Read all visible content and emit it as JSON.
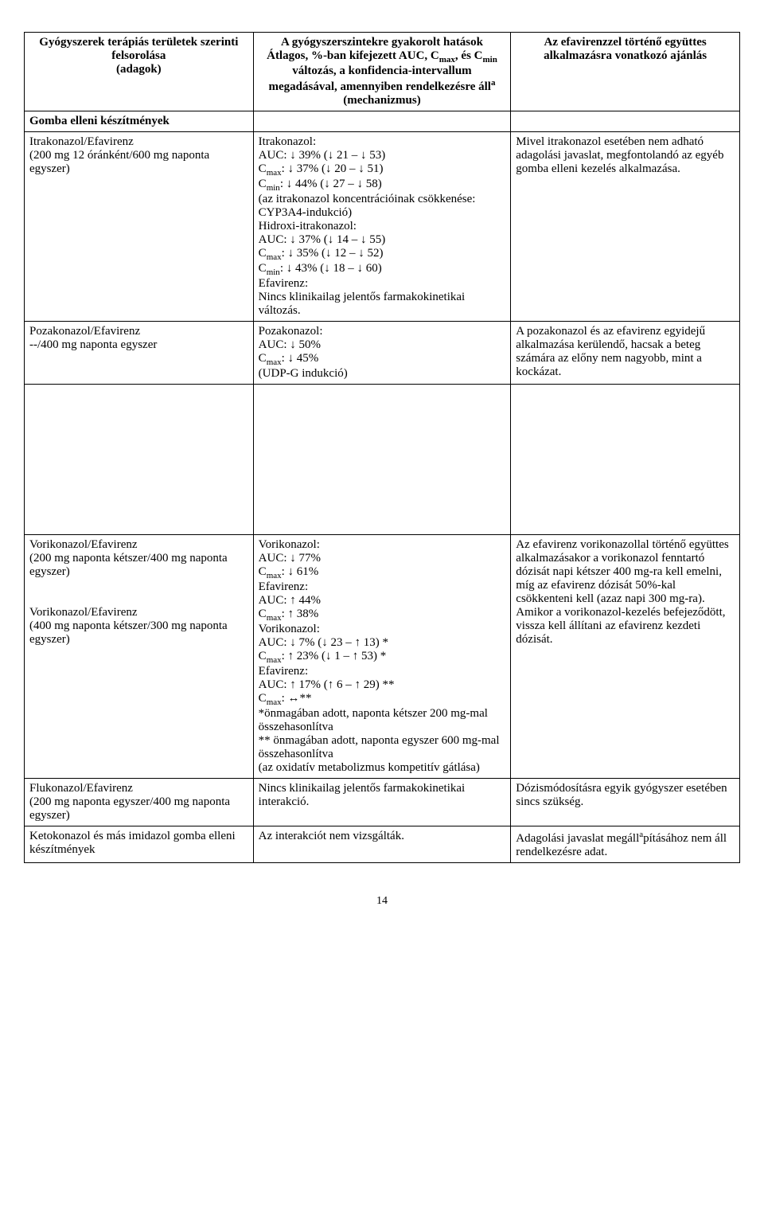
{
  "header": {
    "col1": "Gyógyszerek terápiás területek szerinti felsorolása\n(adagok)",
    "col2": "A gyógyszerszintekre gyakorolt hatások\nÁtlagos, %-ban kifejezett AUC, Cmax, és Cmin változás, a konfidencia-intervallum megadásával, amennyiben rendelkezésre álla\n(mechanizmus)",
    "col3": "Az efavirenzzel történő együttes alkalmazásra vonatkozó ajánlás"
  },
  "section": "Gomba elleni készítmények",
  "rows": [
    {
      "c1": "Itrakonazol/Efavirenz\n(200 mg 12 óránként/600 mg naponta egyszer)",
      "c2": "Itrakonazol:\nAUC: ↓ 39% (↓ 21 – ↓ 53)\nCmax: ↓ 37% (↓ 20 – ↓ 51)\nCmin: ↓ 44% (↓ 27 – ↓ 58)\n(az itrakonazol koncentrációinak csökkenése: CYP3A4-indukció)\nHidroxi-itrakonazol:\nAUC: ↓ 37% (↓ 14 – ↓ 55)\nCmax: ↓ 35% (↓ 12 – ↓ 52)\nCmin: ↓ 43% (↓ 18 – ↓ 60)\nEfavirenz:\nNincs klinikailag jelentős farmakokinetikai változás.",
      "c3": "Mivel itrakonazol esetében nem adható adagolási javaslat, megfontolandó az egyéb gomba elleni kezelés alkalmazása."
    },
    {
      "c1": "Pozakonazol/Efavirenz\n--/400 mg naponta egyszer",
      "c2": "Pozakonazol:\nAUC: ↓ 50%\nCmax: ↓ 45%\n(UDP-G indukció)",
      "c3": "A pozakonazol és az efavirenz egyidejű alkalmazása kerülendő, hacsak a beteg számára az előny nem nagyobb, mint a kockázat."
    },
    {
      "c1": "Vorikonazol/Efavirenz\n(200 mg naponta kétszer/400 mg naponta egyszer)\n\n\nVorikonazol/Efavirenz\n(400 mg naponta kétszer/300 mg naponta egyszer)",
      "c2": "Vorikonazol:\nAUC: ↓ 77%\nCmax: ↓ 61%\nEfavirenz:\nAUC: ↑ 44%\nCmax: ↑ 38%\nVorikonazol:\nAUC: ↓ 7% (↓ 23 – ↑ 13) *\nCmax: ↑ 23% (↓ 1 – ↑ 53) *\nEfavirenz:\nAUC: ↑ 17% (↑ 6 – ↑ 29) **\nCmax: ↔**\n*önmagában adott, naponta kétszer 200 mg-mal összehasonlítva\n** önmagában adott, naponta egyszer 600 mg-mal összehasonlítva\n(az oxidatív metabolizmus kompetitív gátlása)",
      "c3": "Az efavirenz vorikonazollal történő együttes alkalmazásakor a vorikonazol fenntartó dózisát napi kétszer 400 mg-ra kell emelni, míg az efavirenz dózisát 50%-kal csökkenteni kell (azaz napi 300 mg-ra). Amikor a vorikonazol-kezelés befejeződött, vissza kell állítani az efavirenz kezdeti dózisát."
    },
    {
      "c1": "Flukonazol/Efavirenz\n(200 mg naponta egyszer/400 mg naponta egyszer)",
      "c2": "Nincs klinikailag jelentős farmakokinetikai interakció.",
      "c3": "Dózismódosításra egyik gyógyszer esetében sincs szükség."
    },
    {
      "c1": "Ketokonazol és más imidazol gomba elleni készítmények",
      "c2": "Az interakciót nem vizsgálták.",
      "c3": "Adagolási javaslat megállapításához nem áll rendelkezésre adat."
    }
  ],
  "pageNumber": "14"
}
